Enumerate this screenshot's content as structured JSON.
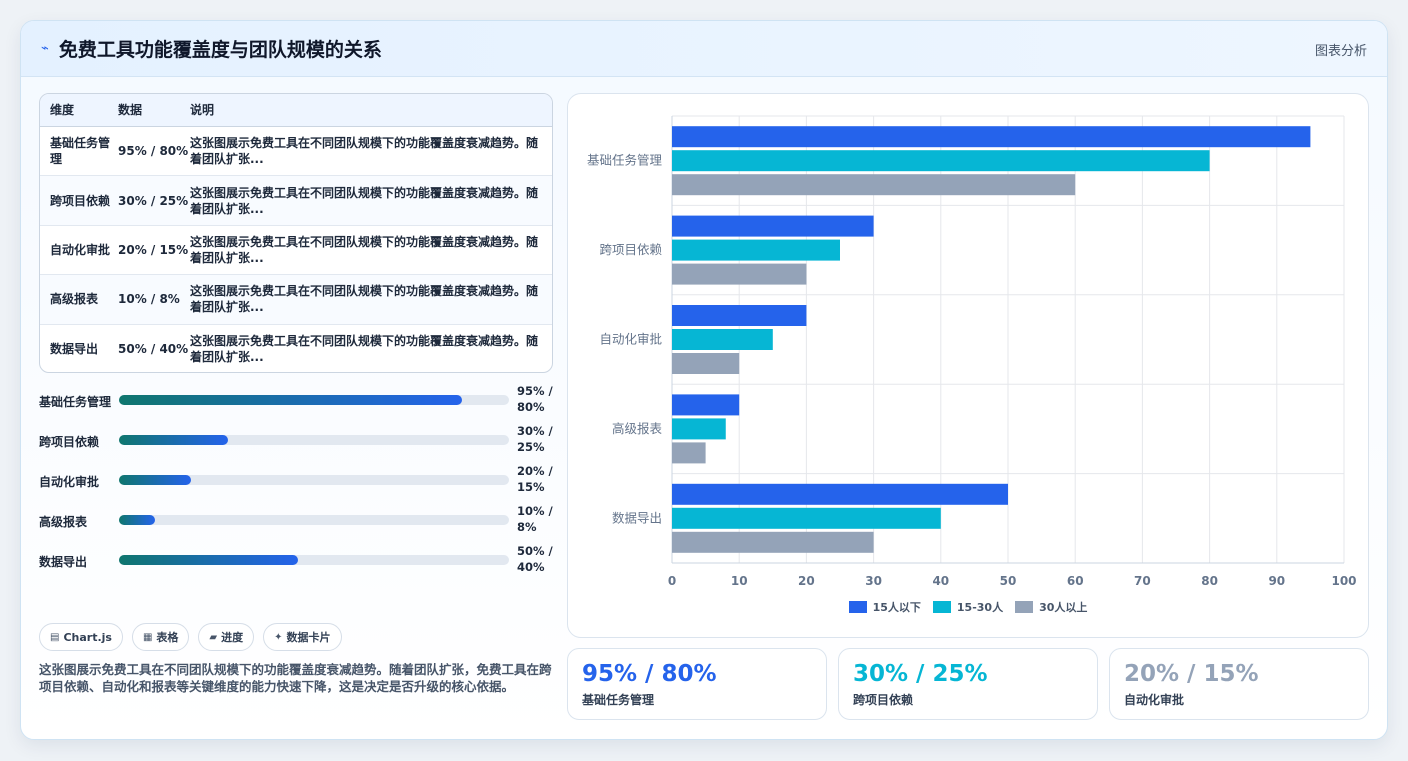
{
  "header": {
    "logo_icon": "spark-icon",
    "title": "免费工具功能覆盖度与团队规模的关系",
    "tag": "图表分析"
  },
  "table": {
    "headers": [
      "维度",
      "数据",
      "说明"
    ],
    "rows": [
      {
        "dim": "基础任务管理",
        "data": "95% / 80%",
        "note": "这张图展示免费工具在不同团队规模下的功能覆盖度衰减趋势。随着团队扩张..."
      },
      {
        "dim": "跨项目依赖",
        "data": "30% / 25%",
        "note": "这张图展示免费工具在不同团队规模下的功能覆盖度衰减趋势。随着团队扩张..."
      },
      {
        "dim": "自动化审批",
        "data": "20% / 15%",
        "note": "这张图展示免费工具在不同团队规模下的功能覆盖度衰减趋势。随着团队扩张..."
      },
      {
        "dim": "高级报表",
        "data": "10% / 8%",
        "note": "这张图展示免费工具在不同团队规模下的功能覆盖度衰减趋势。随着团队扩张..."
      },
      {
        "dim": "数据导出",
        "data": "50% / 40%",
        "note": "这张图展示免费工具在不同团队规模下的功能覆盖度衰减趋势。随着团队扩张..."
      }
    ]
  },
  "progress": [
    {
      "label": "基础任务管理",
      "value_text": "95% / 80%",
      "fill": 0.88
    },
    {
      "label": "跨项目依赖",
      "value_text": "30% / 25%",
      "fill": 0.28
    },
    {
      "label": "自动化审批",
      "value_text": "20% / 15%",
      "fill": 0.185
    },
    {
      "label": "高级报表",
      "value_text": "10% / 8%",
      "fill": 0.093
    },
    {
      "label": "数据导出",
      "value_text": "50% / 40%",
      "fill": 0.46
    }
  ],
  "chips": [
    {
      "icon": "chart-icon",
      "glyph": "▤",
      "label": "Chart.js"
    },
    {
      "icon": "table-icon",
      "glyph": "▦",
      "label": "表格"
    },
    {
      "icon": "folder-icon",
      "glyph": "▰",
      "label": "进度"
    },
    {
      "icon": "sparkle-icon",
      "glyph": "✦",
      "label": "数据卡片"
    }
  ],
  "description": "这张图展示免费工具在不同团队规模下的功能覆盖度衰减趋势。随着团队扩张，免费工具在跨项目依赖、自动化和报表等关键维度的能力快速下降，这是决定是否升级的核心依据。",
  "stats": [
    {
      "value": "95% / 80%",
      "label": "基础任务管理",
      "color": "#2563eb"
    },
    {
      "value": "30% / 25%",
      "label": "跨项目依赖",
      "color": "#06b6d4"
    },
    {
      "value": "20% / 15%",
      "label": "自动化审批",
      "color": "#94a3b8"
    }
  ],
  "chart_data": {
    "type": "bar",
    "orientation": "horizontal",
    "categories": [
      "基础任务管理",
      "跨项目依赖",
      "自动化审批",
      "高级报表",
      "数据导出"
    ],
    "series": [
      {
        "name": "15人以下",
        "color": "#2563eb",
        "values": [
          95,
          30,
          20,
          10,
          50
        ]
      },
      {
        "name": "15-30人",
        "color": "#06b6d4",
        "values": [
          80,
          25,
          15,
          8,
          40
        ]
      },
      {
        "name": "30人以上",
        "color": "#94a3b8",
        "values": [
          60,
          20,
          10,
          5,
          30
        ]
      }
    ],
    "xlim": [
      0,
      100
    ],
    "xticks": [
      0,
      10,
      20,
      30,
      40,
      50,
      60,
      70,
      80,
      90,
      100
    ],
    "grid": true,
    "legend": "bottom-center"
  }
}
